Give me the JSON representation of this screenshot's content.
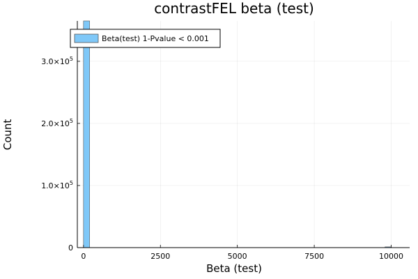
{
  "chart_data": {
    "type": "bar",
    "title": "contrastFEL beta (test)",
    "xlabel": "Beta (test)",
    "ylabel": "Count",
    "xlim": [
      -200,
      10600
    ],
    "ylim": [
      0,
      365000
    ],
    "x_ticks": [
      {
        "value": 0,
        "label": "0"
      },
      {
        "value": 2500,
        "label": "2500"
      },
      {
        "value": 5000,
        "label": "5000"
      },
      {
        "value": 7500,
        "label": "7500"
      },
      {
        "value": 10000,
        "label": "10000"
      }
    ],
    "y_ticks": [
      {
        "value": 0,
        "mant": "0",
        "exp": ""
      },
      {
        "value": 100000,
        "mant": "1.0×10",
        "exp": "5"
      },
      {
        "value": 200000,
        "mant": "2.0×10",
        "exp": "5"
      },
      {
        "value": 300000,
        "mant": "3.0×10",
        "exp": "5"
      }
    ],
    "bin_width": 200,
    "bins": [
      {
        "x0": 0,
        "x1": 200,
        "count": 365000
      },
      {
        "x0": 9800,
        "x1": 10000,
        "count": 1200
      }
    ],
    "series": [
      {
        "name": "Beta(test) 1-Pvalue < 0.001",
        "color": "#7fc8f8"
      }
    ],
    "legend_position": "top-left",
    "grid": true,
    "bar_color": "#7fc8f8",
    "bar_edge_color": "#555555"
  }
}
